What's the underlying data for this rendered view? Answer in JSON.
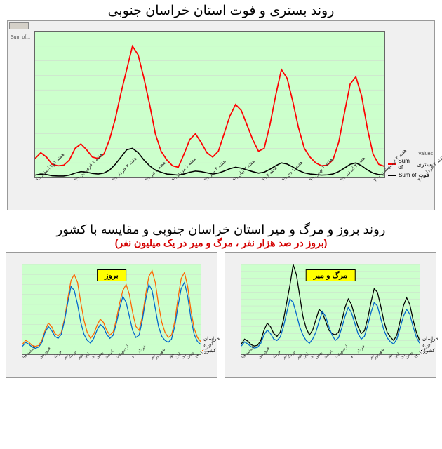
{
  "top": {
    "title": "روند بستری و فوت استان خراسان جنوبی",
    "background_color": "#ccffcc",
    "panel_color": "#f0f0f0",
    "grid_color": "#d0d0d0",
    "y_left": {
      "min": 0,
      "max": 500,
      "step": 50
    },
    "series_a": {
      "name": "بستری",
      "label": "Sum of",
      "color": "#ff0000",
      "end_value": "38",
      "end_color": "#ff0000",
      "values": [
        65,
        85,
        70,
        45,
        40,
        42,
        60,
        100,
        115,
        95,
        70,
        65,
        80,
        130,
        200,
        290,
        370,
        450,
        420,
        340,
        250,
        150,
        90,
        60,
        40,
        35,
        80,
        130,
        150,
        120,
        85,
        70,
        90,
        150,
        210,
        250,
        230,
        180,
        130,
        90,
        100,
        180,
        280,
        370,
        340,
        260,
        170,
        100,
        70,
        50,
        40,
        42,
        60,
        120,
        220,
        320,
        345,
        280,
        170,
        80,
        45,
        38
      ]
    },
    "series_b": {
      "name": "فوت",
      "label": "Sum of",
      "color": "#000000",
      "end_value": "8",
      "end_color": "#000000",
      "values": [
        8,
        12,
        10,
        6,
        5,
        5,
        8,
        15,
        20,
        18,
        14,
        12,
        15,
        25,
        45,
        70,
        95,
        100,
        85,
        60,
        40,
        25,
        18,
        12,
        10,
        8,
        12,
        18,
        22,
        20,
        16,
        12,
        15,
        22,
        30,
        35,
        32,
        26,
        20,
        15,
        18,
        28,
        40,
        50,
        46,
        36,
        24,
        16,
        12,
        10,
        8,
        9,
        12,
        20,
        32,
        45,
        50,
        40,
        26,
        15,
        10,
        8
      ]
    },
    "x_labels": [
      "هفته ۱و۲ اسفند ۹۸",
      "هفته ۱ فروردین ۹۹",
      "هفته ۳ خرداد ۹۹",
      "هفته ۳ تیر ۹۹",
      "هفته ۱ مرداد ۹۹",
      "هفته ۴ مهر ۹۹",
      "هفته ۲ ابان ۹۹",
      "هفته ۴ ۹۹",
      "هفته ۱ دی ۹۹",
      "هفته ۳ بهمن ۹۹",
      "هفته ۴ اسفند ۹۹",
      "هفته ۲ اردیبهشت ۴۰۰",
      "هفته ۲ خرداد ۴۰۰",
      "هفته ۴ تیر ۴۰۰",
      "هفته ۳ شهریور ۴۰۰",
      "هفته ۳ مهر ۴۰۰",
      "هفته ۲ ابان ۴۰۰",
      "هفته ۴ ۴۰۰",
      "هفته ۲ دی ۴۰۰",
      "هفته ۴ بهمن ۴۰۰",
      "هفته ۱ فروردین ۱۴۰۱"
    ],
    "legend_head": "Values"
  },
  "bottom": {
    "title": "روند بروز و مرگ و میر استان خراسان جنوبی و مقایسه با کشور",
    "subtitle": "(بروز در صد هزار نفر ، مرگ و میر در یک میلیون نفر)",
    "subtitle_color": "#d40000",
    "left": {
      "title": "بروز",
      "y": {
        "min": 0,
        "max": 225,
        "step": 25
      },
      "series_a": {
        "name": "خراسان ج",
        "color": "#0066cc",
        "values": [
          20,
          30,
          25,
          18,
          15,
          18,
          30,
          55,
          70,
          60,
          45,
          40,
          50,
          85,
          130,
          170,
          160,
          125,
          80,
          50,
          35,
          28,
          40,
          60,
          75,
          68,
          50,
          40,
          48,
          78,
          115,
          145,
          130,
          95,
          60,
          42,
          48,
          85,
          135,
          175,
          160,
          115,
          70,
          45,
          35,
          30,
          38,
          70,
          120,
          165,
          180,
          145,
          90,
          50,
          32,
          25
        ]
      },
      "series_b": {
        "name": "کشور",
        "color": "#ff6600",
        "values": [
          25,
          35,
          30,
          22,
          20,
          22,
          35,
          60,
          78,
          70,
          52,
          46,
          55,
          90,
          140,
          185,
          200,
          180,
          130,
          85,
          55,
          40,
          50,
          72,
          88,
          80,
          60,
          48,
          56,
          88,
          128,
          160,
          175,
          150,
          105,
          70,
          60,
          95,
          148,
          195,
          210,
          180,
          125,
          80,
          55,
          42,
          48,
          82,
          140,
          190,
          205,
          170,
          110,
          65,
          42,
          32
        ]
      }
    },
    "right": {
      "title": "مرگ و میر",
      "y": {
        "min": 0,
        "max": 13,
        "step": 1
      },
      "series_a": {
        "name": "خراسان ج",
        "color": "#0066cc",
        "values": [
          1.2,
          1.8,
          1.5,
          1.1,
          0.9,
          1.0,
          1.6,
          2.8,
          3.5,
          3.0,
          2.2,
          2.0,
          2.5,
          4.0,
          6.0,
          8.0,
          7.5,
          5.8,
          4.0,
          2.8,
          2.0,
          1.6,
          2.2,
          3.2,
          4.8,
          6.2,
          5.5,
          4.0,
          2.8,
          2.0,
          2.4,
          3.8,
          5.5,
          6.8,
          6.0,
          4.5,
          3.0,
          2.2,
          2.6,
          4.2,
          6.0,
          7.5,
          7.0,
          5.2,
          3.5,
          2.4,
          1.8,
          1.5,
          2.2,
          3.8,
          5.5,
          6.5,
          5.8,
          4.0,
          2.5,
          1.6
        ]
      },
      "series_b": {
        "name": "کشور",
        "color": "#000000",
        "values": [
          1.5,
          2.2,
          1.9,
          1.4,
          1.2,
          1.3,
          2.0,
          3.5,
          4.5,
          4.0,
          3.0,
          2.6,
          3.2,
          5.0,
          7.5,
          10.0,
          13.0,
          11.5,
          8.5,
          5.5,
          3.8,
          2.8,
          3.5,
          5.0,
          6.5,
          6.0,
          4.8,
          3.5,
          3.0,
          2.8,
          3.2,
          4.8,
          6.8,
          8.0,
          7.2,
          5.5,
          4.0,
          3.0,
          3.4,
          5.2,
          7.5,
          9.5,
          9.0,
          7.0,
          4.8,
          3.2,
          2.5,
          2.0,
          2.8,
          4.8,
          7.0,
          8.2,
          7.2,
          5.0,
          3.2,
          2.0
        ]
      }
    },
    "x_labels": [
      "اسفند ۹۸",
      "فروردین",
      "خرداد",
      "تیر",
      "مرداد",
      "مهر",
      "ابان",
      "دی",
      "بهمن",
      "اسفند",
      "اردیبهشت",
      "خرداد ۴۰۰",
      "تیر",
      "شهریور",
      "مهر",
      "ابان",
      "دی",
      "بهمن",
      "فروردین ۱۴۰۱"
    ]
  }
}
